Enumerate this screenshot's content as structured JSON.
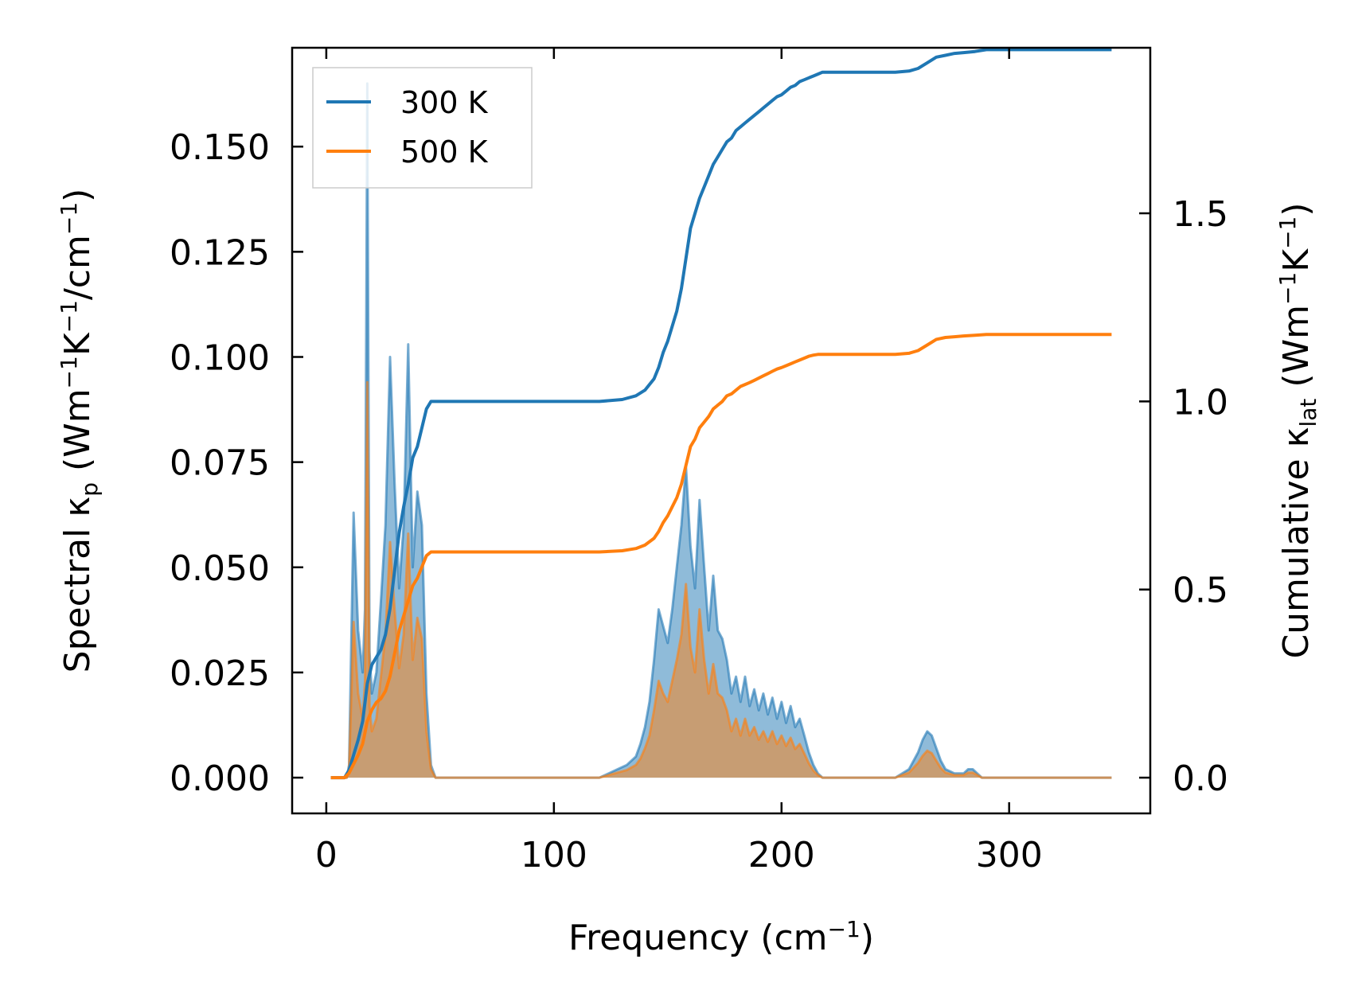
{
  "chart_data": {
    "type": "line",
    "xlabel": {
      "main": "Frequency (cm",
      "sup": "−1",
      "end": ")"
    },
    "ylabel_left": {
      "p1": "Spectral κ",
      "sub": "p",
      "p2": " (Wm",
      "s1": "−1",
      "p3": "K",
      "s2": "−1",
      "p4": "/cm",
      "s3": "−1",
      "p5": ")"
    },
    "ylabel_right": {
      "p1": "Cumulative κ",
      "sub": "lat",
      "p2": " (Wm",
      "s1": "−1",
      "p3": "K",
      "s2": "−1",
      "p4": ")"
    },
    "xlim": [
      -15,
      362
    ],
    "ylim_left": [
      -0.0085,
      0.1735
    ],
    "ylim_right": [
      -0.095,
      1.94
    ],
    "x_ticks": [
      0,
      100,
      200,
      300
    ],
    "y_left_ticks": [
      0.0,
      0.025,
      0.05,
      0.075,
      0.1,
      0.125,
      0.15
    ],
    "y_left_tick_labels": [
      "0.000",
      "0.025",
      "0.050",
      "0.075",
      "0.100",
      "0.125",
      "0.150"
    ],
    "y_right_ticks": [
      0.0,
      0.5,
      1.0,
      1.5
    ],
    "y_right_tick_labels": [
      "0.0",
      "0.5",
      "1.0",
      "1.5"
    ],
    "legend_position": "upper-left",
    "grid": false,
    "series": [
      {
        "name": "300 K",
        "color": "#1f77b4",
        "spectral": {
          "x": [
            2,
            9,
            10,
            12,
            14,
            16,
            17,
            18,
            19,
            20,
            22,
            24,
            26,
            28,
            30,
            32,
            34,
            36,
            38,
            40,
            42,
            44,
            46,
            48,
            60,
            100,
            120,
            124,
            128,
            132,
            136,
            138,
            140,
            142,
            144,
            146,
            148,
            150,
            152,
            154,
            156,
            158,
            160,
            162,
            164,
            166,
            168,
            170,
            172,
            174,
            176,
            178,
            180,
            182,
            184,
            186,
            188,
            190,
            192,
            194,
            196,
            198,
            200,
            202,
            204,
            206,
            208,
            210,
            212,
            214,
            216,
            218,
            220,
            250,
            256,
            260,
            262,
            264,
            266,
            268,
            270,
            272,
            274,
            276,
            278,
            280,
            282,
            284,
            286,
            288,
            290,
            300,
            345
          ],
          "y": [
            0,
            0,
            0.003,
            0.063,
            0.035,
            0.025,
            0.04,
            0.165,
            0.03,
            0.02,
            0.025,
            0.042,
            0.06,
            0.1,
            0.07,
            0.045,
            0.06,
            0.103,
            0.05,
            0.068,
            0.06,
            0.02,
            0.003,
            0,
            0,
            0,
            0,
            0.001,
            0.002,
            0.003,
            0.005,
            0.008,
            0.012,
            0.018,
            0.028,
            0.04,
            0.036,
            0.032,
            0.04,
            0.05,
            0.06,
            0.074,
            0.055,
            0.045,
            0.066,
            0.05,
            0.035,
            0.048,
            0.035,
            0.033,
            0.028,
            0.02,
            0.024,
            0.018,
            0.024,
            0.017,
            0.021,
            0.016,
            0.02,
            0.015,
            0.019,
            0.014,
            0.018,
            0.013,
            0.017,
            0.012,
            0.014,
            0.01,
            0.006,
            0.003,
            0.001,
            0,
            0,
            0,
            0.002,
            0.006,
            0.009,
            0.011,
            0.01,
            0.007,
            0.004,
            0.002,
            0.0015,
            0.001,
            0.001,
            0.001,
            0.002,
            0.002,
            0.001,
            0,
            0,
            0,
            0
          ]
        },
        "cumulative": {
          "x": [
            2,
            8,
            10,
            14,
            16,
            18,
            20,
            22,
            24,
            26,
            28,
            30,
            32,
            34,
            36,
            38,
            40,
            42,
            44,
            46,
            48,
            50,
            100,
            120,
            130,
            136,
            140,
            144,
            146,
            148,
            150,
            152,
            154,
            156,
            158,
            160,
            162,
            164,
            166,
            168,
            170,
            172,
            174,
            176,
            178,
            180,
            182,
            184,
            186,
            188,
            190,
            192,
            194,
            196,
            198,
            200,
            202,
            204,
            206,
            208,
            210,
            212,
            214,
            216,
            218,
            220,
            230,
            250,
            256,
            260,
            264,
            268,
            272,
            276,
            280,
            285,
            290,
            300,
            345
          ],
          "y": [
            0,
            0,
            0.02,
            0.1,
            0.15,
            0.25,
            0.3,
            0.32,
            0.34,
            0.38,
            0.45,
            0.55,
            0.65,
            0.72,
            0.78,
            0.85,
            0.88,
            0.93,
            0.98,
            1.0,
            1.0,
            1.0,
            1.0,
            1.0,
            1.005,
            1.015,
            1.03,
            1.06,
            1.09,
            1.13,
            1.16,
            1.2,
            1.24,
            1.3,
            1.38,
            1.46,
            1.5,
            1.54,
            1.57,
            1.6,
            1.63,
            1.65,
            1.67,
            1.69,
            1.7,
            1.72,
            1.73,
            1.74,
            1.75,
            1.76,
            1.77,
            1.78,
            1.79,
            1.8,
            1.81,
            1.815,
            1.825,
            1.835,
            1.84,
            1.85,
            1.855,
            1.86,
            1.865,
            1.87,
            1.875,
            1.875,
            1.875,
            1.875,
            1.878,
            1.885,
            1.9,
            1.915,
            1.92,
            1.925,
            1.927,
            1.93,
            1.935,
            1.935,
            1.935
          ]
        }
      },
      {
        "name": "500 K",
        "color": "#ff7f0e",
        "spectral": {
          "x": [
            2,
            9,
            10,
            12,
            14,
            16,
            17,
            18,
            19,
            20,
            22,
            24,
            26,
            28,
            30,
            32,
            34,
            36,
            38,
            40,
            42,
            44,
            46,
            48,
            60,
            100,
            120,
            124,
            128,
            132,
            136,
            138,
            140,
            142,
            144,
            146,
            148,
            150,
            152,
            154,
            156,
            158,
            160,
            162,
            164,
            166,
            168,
            170,
            172,
            174,
            176,
            178,
            180,
            182,
            184,
            186,
            188,
            190,
            192,
            194,
            196,
            198,
            200,
            202,
            204,
            206,
            208,
            210,
            212,
            214,
            216,
            218,
            220,
            250,
            256,
            260,
            262,
            264,
            266,
            268,
            270,
            272,
            274,
            276,
            278,
            280,
            282,
            284,
            286,
            288,
            290,
            300,
            345
          ],
          "y": [
            0,
            0,
            0.002,
            0.037,
            0.02,
            0.014,
            0.023,
            0.094,
            0.017,
            0.011,
            0.014,
            0.024,
            0.034,
            0.056,
            0.04,
            0.026,
            0.034,
            0.058,
            0.028,
            0.038,
            0.033,
            0.011,
            0.002,
            0,
            0,
            0,
            0,
            0.0006,
            0.0012,
            0.0018,
            0.003,
            0.0045,
            0.007,
            0.01,
            0.016,
            0.023,
            0.02,
            0.018,
            0.023,
            0.028,
            0.034,
            0.046,
            0.031,
            0.025,
            0.04,
            0.028,
            0.02,
            0.027,
            0.02,
            0.019,
            0.016,
            0.011,
            0.014,
            0.01,
            0.014,
            0.01,
            0.012,
            0.009,
            0.011,
            0.0085,
            0.011,
            0.008,
            0.01,
            0.0075,
            0.0095,
            0.0068,
            0.008,
            0.0057,
            0.0034,
            0.0017,
            0.0006,
            0,
            0,
            0,
            0.0012,
            0.0035,
            0.0052,
            0.0064,
            0.0058,
            0.004,
            0.0023,
            0.0012,
            0.0009,
            0.0006,
            0.0006,
            0.0006,
            0.0012,
            0.0012,
            0.0006,
            0,
            0,
            0,
            0
          ]
        },
        "cumulative": {
          "x": [
            2,
            8,
            10,
            14,
            16,
            18,
            20,
            22,
            24,
            26,
            28,
            30,
            32,
            34,
            36,
            38,
            40,
            42,
            44,
            46,
            48,
            50,
            100,
            120,
            130,
            136,
            140,
            144,
            146,
            148,
            150,
            152,
            154,
            156,
            158,
            160,
            162,
            164,
            166,
            168,
            170,
            172,
            174,
            176,
            178,
            180,
            182,
            184,
            186,
            188,
            190,
            192,
            194,
            196,
            198,
            200,
            202,
            204,
            206,
            208,
            210,
            212,
            214,
            216,
            218,
            220,
            230,
            250,
            256,
            260,
            264,
            268,
            272,
            276,
            280,
            285,
            290,
            300,
            345
          ],
          "y": [
            0,
            0,
            0.012,
            0.06,
            0.09,
            0.15,
            0.18,
            0.2,
            0.21,
            0.23,
            0.27,
            0.33,
            0.39,
            0.43,
            0.47,
            0.51,
            0.53,
            0.56,
            0.59,
            0.6,
            0.6,
            0.6,
            0.6,
            0.6,
            0.603,
            0.609,
            0.618,
            0.636,
            0.654,
            0.678,
            0.696,
            0.72,
            0.744,
            0.78,
            0.83,
            0.88,
            0.9,
            0.93,
            0.945,
            0.96,
            0.98,
            0.99,
            1.0,
            1.015,
            1.02,
            1.03,
            1.04,
            1.045,
            1.05,
            1.056,
            1.062,
            1.068,
            1.074,
            1.08,
            1.086,
            1.09,
            1.095,
            1.1,
            1.105,
            1.11,
            1.115,
            1.12,
            1.123,
            1.125,
            1.125,
            1.125,
            1.125,
            1.125,
            1.128,
            1.135,
            1.15,
            1.165,
            1.17,
            1.172,
            1.174,
            1.176,
            1.178,
            1.178,
            1.178
          ]
        }
      }
    ]
  }
}
